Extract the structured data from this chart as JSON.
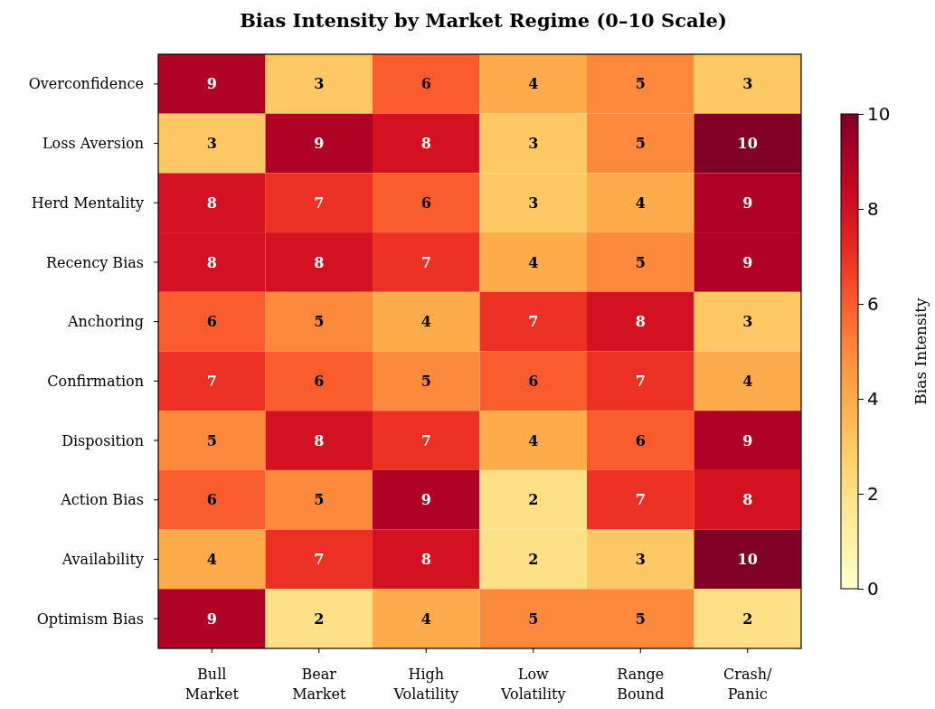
{
  "chart_data": {
    "type": "heatmap",
    "title": "Bias Intensity by Market Regime (0–10 Scale)",
    "categories": [
      "Bull\nMarket",
      "Bear\nMarket",
      "High\nVolatility",
      "Low\nVolatility",
      "Range\nBound",
      "Crash/\nPanic"
    ],
    "y_categories": [
      "Overconfidence",
      "Loss Aversion",
      "Herd Mentality",
      "Recency Bias",
      "Anchoring",
      "Confirmation",
      "Disposition",
      "Action Bias",
      "Availability",
      "Optimism Bias"
    ],
    "cells": [
      [
        9,
        3,
        6,
        4,
        5,
        3
      ],
      [
        3,
        9,
        8,
        3,
        5,
        10
      ],
      [
        8,
        7,
        6,
        3,
        4,
        9
      ],
      [
        8,
        8,
        7,
        4,
        5,
        9
      ],
      [
        6,
        5,
        4,
        7,
        8,
        3
      ],
      [
        7,
        6,
        5,
        6,
        7,
        4
      ],
      [
        5,
        8,
        7,
        4,
        6,
        9
      ],
      [
        6,
        5,
        9,
        2,
        7,
        8
      ],
      [
        4,
        7,
        8,
        2,
        3,
        10
      ],
      [
        9,
        2,
        4,
        5,
        5,
        2
      ]
    ],
    "clim": [
      0,
      10
    ],
    "cticks": [
      0,
      2,
      4,
      6,
      8,
      10
    ],
    "clabel": "Bias Intensity",
    "data_labels": true
  }
}
